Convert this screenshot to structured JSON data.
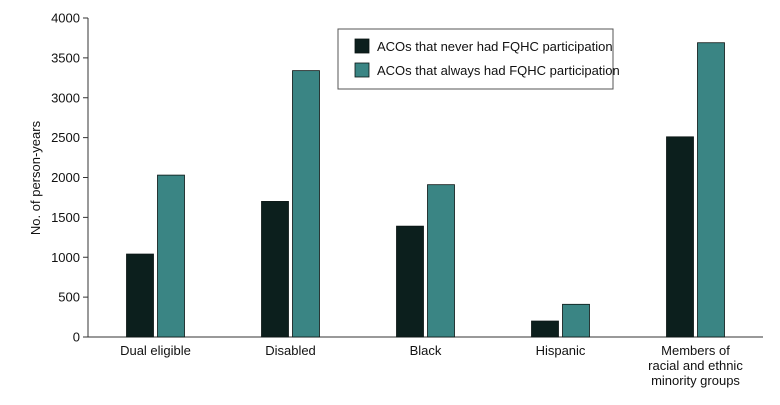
{
  "chart_data": {
    "type": "bar",
    "categories": [
      "Dual eligible",
      "Disabled",
      "Black",
      "Hispanic",
      "Members of racial and ethnic minority groups"
    ],
    "category_label_lines": [
      [
        "Dual eligible"
      ],
      [
        "Disabled"
      ],
      [
        "Black"
      ],
      [
        "Hispanic"
      ],
      [
        "Members of",
        "racial and ethnic",
        "minority groups"
      ]
    ],
    "series": [
      {
        "name": "ACOs that never had FQHC participation",
        "color": "#0c1f1d",
        "values": [
          1040,
          1700,
          1390,
          200,
          2510
        ]
      },
      {
        "name": "ACOs that always had FQHC participation",
        "color": "#3a8584",
        "values": [
          2030,
          3340,
          1910,
          410,
          3690
        ]
      }
    ],
    "xlabel": "",
    "ylabel": "No. of person-years",
    "ylim": [
      0,
      4000
    ],
    "yticks": [
      0,
      500,
      1000,
      1500,
      2000,
      2500,
      3000,
      3500,
      4000
    ],
    "grid": false,
    "legend_position": "top-right"
  }
}
